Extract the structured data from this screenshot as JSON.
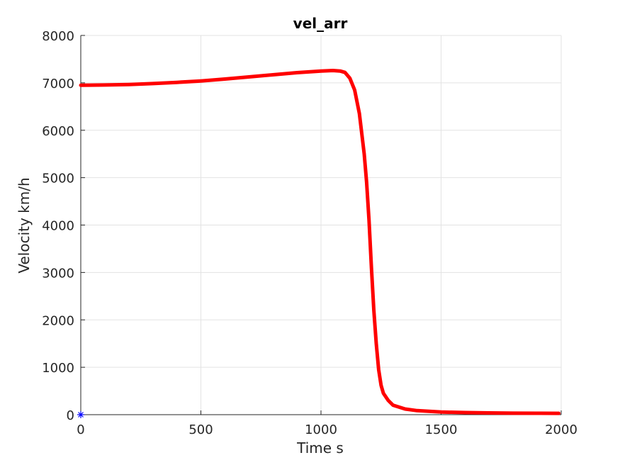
{
  "chart_data": {
    "type": "line",
    "title": "vel_arr",
    "xlabel": "Time s",
    "ylabel": "Velocity km/h",
    "xlim": [
      0,
      2000
    ],
    "ylim": [
      0,
      8000
    ],
    "xticks": [
      0,
      500,
      1000,
      1500,
      2000
    ],
    "yticks": [
      0,
      1000,
      2000,
      3000,
      4000,
      5000,
      6000,
      7000,
      8000
    ],
    "xtick_labels": [
      "0",
      "500",
      "1000",
      "1500",
      "2000"
    ],
    "ytick_labels": [
      "0",
      "1000",
      "2000",
      "3000",
      "4000",
      "5000",
      "6000",
      "7000",
      "8000"
    ],
    "grid": true,
    "series": [
      {
        "color": "#ff0000",
        "x": [
          0,
          100,
          200,
          300,
          400,
          500,
          600,
          700,
          800,
          900,
          1000,
          1050,
          1080,
          1100,
          1120,
          1140,
          1160,
          1180,
          1190,
          1200,
          1210,
          1220,
          1230,
          1240,
          1250,
          1260,
          1280,
          1300,
          1350,
          1400,
          1500,
          1600,
          1700,
          1800,
          1900,
          1990
        ],
        "y": [
          6950,
          6955,
          6965,
          6985,
          7010,
          7040,
          7080,
          7125,
          7170,
          7215,
          7250,
          7260,
          7250,
          7220,
          7100,
          6850,
          6350,
          5500,
          4900,
          4100,
          3100,
          2200,
          1500,
          950,
          620,
          450,
          300,
          200,
          120,
          85,
          55,
          45,
          38,
          32,
          30,
          28
        ]
      },
      {
        "color": "#0000ff",
        "marker": "asterisk",
        "x": [
          0
        ],
        "y": [
          0
        ]
      }
    ]
  }
}
